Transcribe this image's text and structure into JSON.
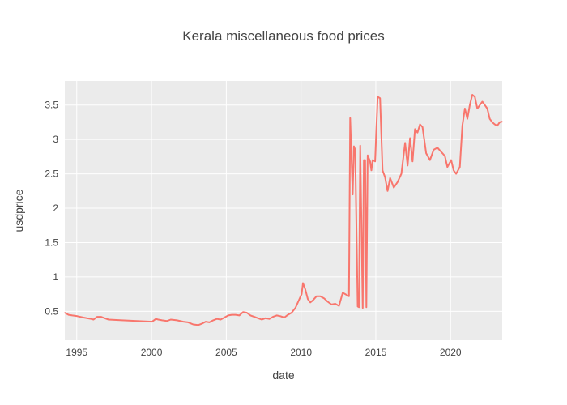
{
  "chart_data": {
    "type": "line",
    "title": "Kerala miscellaneous food prices",
    "xlabel": "date",
    "ylabel": "usdprice",
    "xlim": [
      "1994-03-15",
      "2023-06-15"
    ],
    "ylim": [
      0.08,
      3.85
    ],
    "x_ticks": [
      {
        "date": "1995-01-01",
        "label": "1995"
      },
      {
        "date": "2000-01-01",
        "label": "2000"
      },
      {
        "date": "2005-01-01",
        "label": "2005"
      },
      {
        "date": "2010-01-01",
        "label": "2010"
      },
      {
        "date": "2015-01-01",
        "label": "2015"
      },
      {
        "date": "2020-01-01",
        "label": "2020"
      }
    ],
    "y_ticks": [
      {
        "value": 0.5,
        "label": "0.5"
      },
      {
        "value": 1,
        "label": "1"
      },
      {
        "value": 1.5,
        "label": "1.5"
      },
      {
        "value": 2,
        "label": "2"
      },
      {
        "value": 2.5,
        "label": "2.5"
      },
      {
        "value": 3,
        "label": "3"
      },
      {
        "value": 3.5,
        "label": "3.5"
      }
    ],
    "grid": true,
    "plot_background": "#ebebeb",
    "series": [
      {
        "color": "#f8766d",
        "points": [
          [
            "1994-03-15",
            0.48
          ],
          [
            "1994-06-15",
            0.45
          ],
          [
            "1994-09-15",
            0.44
          ],
          [
            "1995-01-15",
            0.43
          ],
          [
            "1995-06-15",
            0.41
          ],
          [
            "1995-12-15",
            0.39
          ],
          [
            "1996-02-15",
            0.38
          ],
          [
            "1996-05-15",
            0.42
          ],
          [
            "1996-08-15",
            0.42
          ],
          [
            "1996-11-15",
            0.4
          ],
          [
            "1997-02-15",
            0.38
          ],
          [
            "1998-01-15",
            0.37
          ],
          [
            "1999-01-15",
            0.36
          ],
          [
            "2000-01-15",
            0.35
          ],
          [
            "2000-04-15",
            0.39
          ],
          [
            "2000-06-15",
            0.38
          ],
          [
            "2000-09-15",
            0.37
          ],
          [
            "2001-01-15",
            0.36
          ],
          [
            "2001-04-15",
            0.38
          ],
          [
            "2001-09-15",
            0.37
          ],
          [
            "2002-02-15",
            0.35
          ],
          [
            "2002-06-15",
            0.34
          ],
          [
            "2002-10-15",
            0.31
          ],
          [
            "2003-02-15",
            0.3
          ],
          [
            "2003-05-15",
            0.32
          ],
          [
            "2003-08-15",
            0.35
          ],
          [
            "2003-11-15",
            0.34
          ],
          [
            "2004-02-15",
            0.37
          ],
          [
            "2004-05-15",
            0.39
          ],
          [
            "2004-08-15",
            0.38
          ],
          [
            "2004-11-15",
            0.41
          ],
          [
            "2005-02-15",
            0.44
          ],
          [
            "2005-05-15",
            0.45
          ],
          [
            "2005-08-15",
            0.45
          ],
          [
            "2005-11-15",
            0.44
          ],
          [
            "2006-02-15",
            0.49
          ],
          [
            "2006-05-15",
            0.48
          ],
          [
            "2006-08-15",
            0.44
          ],
          [
            "2006-11-15",
            0.42
          ],
          [
            "2007-02-15",
            0.4
          ],
          [
            "2007-05-15",
            0.38
          ],
          [
            "2007-08-15",
            0.4
          ],
          [
            "2007-11-15",
            0.39
          ],
          [
            "2008-02-15",
            0.42
          ],
          [
            "2008-05-15",
            0.44
          ],
          [
            "2008-08-15",
            0.43
          ],
          [
            "2008-11-15",
            0.41
          ],
          [
            "2009-02-15",
            0.45
          ],
          [
            "2009-05-15",
            0.48
          ],
          [
            "2009-08-15",
            0.55
          ],
          [
            "2009-11-15",
            0.67
          ],
          [
            "2010-01-15",
            0.75
          ],
          [
            "2010-02-15",
            0.91
          ],
          [
            "2010-04-15",
            0.82
          ],
          [
            "2010-06-15",
            0.68
          ],
          [
            "2010-08-15",
            0.63
          ],
          [
            "2010-10-15",
            0.66
          ],
          [
            "2011-01-15",
            0.72
          ],
          [
            "2011-04-15",
            0.72
          ],
          [
            "2011-07-15",
            0.69
          ],
          [
            "2011-10-15",
            0.64
          ],
          [
            "2012-01-15",
            0.6
          ],
          [
            "2012-04-15",
            0.61
          ],
          [
            "2012-07-15",
            0.58
          ],
          [
            "2012-10-15",
            0.77
          ],
          [
            "2013-01-15",
            0.74
          ],
          [
            "2013-03-15",
            0.72
          ],
          [
            "2013-04-15",
            3.31
          ],
          [
            "2013-06-15",
            2.2
          ],
          [
            "2013-07-15",
            2.9
          ],
          [
            "2013-08-15",
            2.85
          ],
          [
            "2013-10-15",
            0.57
          ],
          [
            "2013-11-15",
            0.56
          ],
          [
            "2013-12-15",
            2.91
          ],
          [
            "2014-02-15",
            0.55
          ],
          [
            "2014-03-15",
            2.7
          ],
          [
            "2014-04-15",
            2.7
          ],
          [
            "2014-05-15",
            0.56
          ],
          [
            "2014-06-15",
            2.77
          ],
          [
            "2014-08-15",
            2.68
          ],
          [
            "2014-09-15",
            2.55
          ],
          [
            "2014-10-15",
            2.7
          ],
          [
            "2014-12-15",
            2.68
          ],
          [
            "2015-02-15",
            3.62
          ],
          [
            "2015-04-15",
            3.6
          ],
          [
            "2015-06-15",
            2.55
          ],
          [
            "2015-08-15",
            2.45
          ],
          [
            "2015-10-15",
            2.25
          ],
          [
            "2015-12-15",
            2.44
          ],
          [
            "2016-03-15",
            2.3
          ],
          [
            "2016-06-15",
            2.38
          ],
          [
            "2016-09-15",
            2.5
          ],
          [
            "2016-12-15",
            2.95
          ],
          [
            "2017-02-15",
            2.62
          ],
          [
            "2017-04-15",
            3.02
          ],
          [
            "2017-06-15",
            2.68
          ],
          [
            "2017-08-15",
            3.15
          ],
          [
            "2017-10-15",
            3.1
          ],
          [
            "2017-12-15",
            3.22
          ],
          [
            "2018-02-15",
            3.18
          ],
          [
            "2018-05-15",
            2.8
          ],
          [
            "2018-08-15",
            2.7
          ],
          [
            "2018-11-15",
            2.85
          ],
          [
            "2019-02-15",
            2.88
          ],
          [
            "2019-05-15",
            2.82
          ],
          [
            "2019-08-15",
            2.76
          ],
          [
            "2019-10-15",
            2.6
          ],
          [
            "2020-01-15",
            2.7
          ],
          [
            "2020-03-15",
            2.55
          ],
          [
            "2020-05-15",
            2.5
          ],
          [
            "2020-08-15",
            2.6
          ],
          [
            "2020-10-15",
            3.2
          ],
          [
            "2020-12-15",
            3.45
          ],
          [
            "2021-02-15",
            3.3
          ],
          [
            "2021-04-15",
            3.5
          ],
          [
            "2021-06-15",
            3.65
          ],
          [
            "2021-08-15",
            3.62
          ],
          [
            "2021-10-15",
            3.45
          ],
          [
            "2021-12-15",
            3.5
          ],
          [
            "2022-02-15",
            3.55
          ],
          [
            "2022-04-15",
            3.5
          ],
          [
            "2022-06-15",
            3.45
          ],
          [
            "2022-08-15",
            3.3
          ],
          [
            "2022-10-15",
            3.25
          ],
          [
            "2022-12-15",
            3.22
          ],
          [
            "2023-02-15",
            3.2
          ],
          [
            "2023-04-15",
            3.25
          ],
          [
            "2023-06-15",
            3.26
          ]
        ]
      }
    ]
  }
}
